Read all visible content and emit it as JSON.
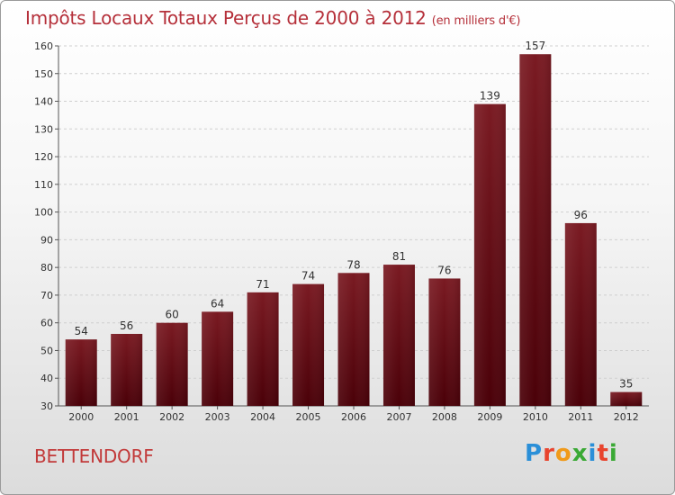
{
  "header": {
    "title": "Impôts Locaux Totaux Perçus de 2000 à 2012",
    "unit": "(en milliers d'€)"
  },
  "footer": {
    "city": "BETTENDORF",
    "logo": "Proxiti"
  },
  "colors": {
    "bar": "#7a1a22",
    "bar_dark": "#4a0008",
    "title": "#b5303a"
  },
  "chart_data": {
    "type": "bar",
    "title": "Impôts Locaux Totaux Perçus de 2000 à 2012",
    "xlabel": "",
    "ylabel": "",
    "categories": [
      "2000",
      "2001",
      "2002",
      "2003",
      "2004",
      "2005",
      "2006",
      "2007",
      "2008",
      "2009",
      "2010",
      "2011",
      "2012"
    ],
    "values": [
      54,
      56,
      60,
      64,
      71,
      74,
      78,
      81,
      76,
      139,
      157,
      96,
      35
    ],
    "ylim": [
      30,
      160
    ],
    "yticks": [
      30,
      40,
      50,
      60,
      70,
      80,
      90,
      100,
      110,
      120,
      130,
      140,
      150,
      160
    ],
    "grid": true,
    "legend": "none"
  }
}
